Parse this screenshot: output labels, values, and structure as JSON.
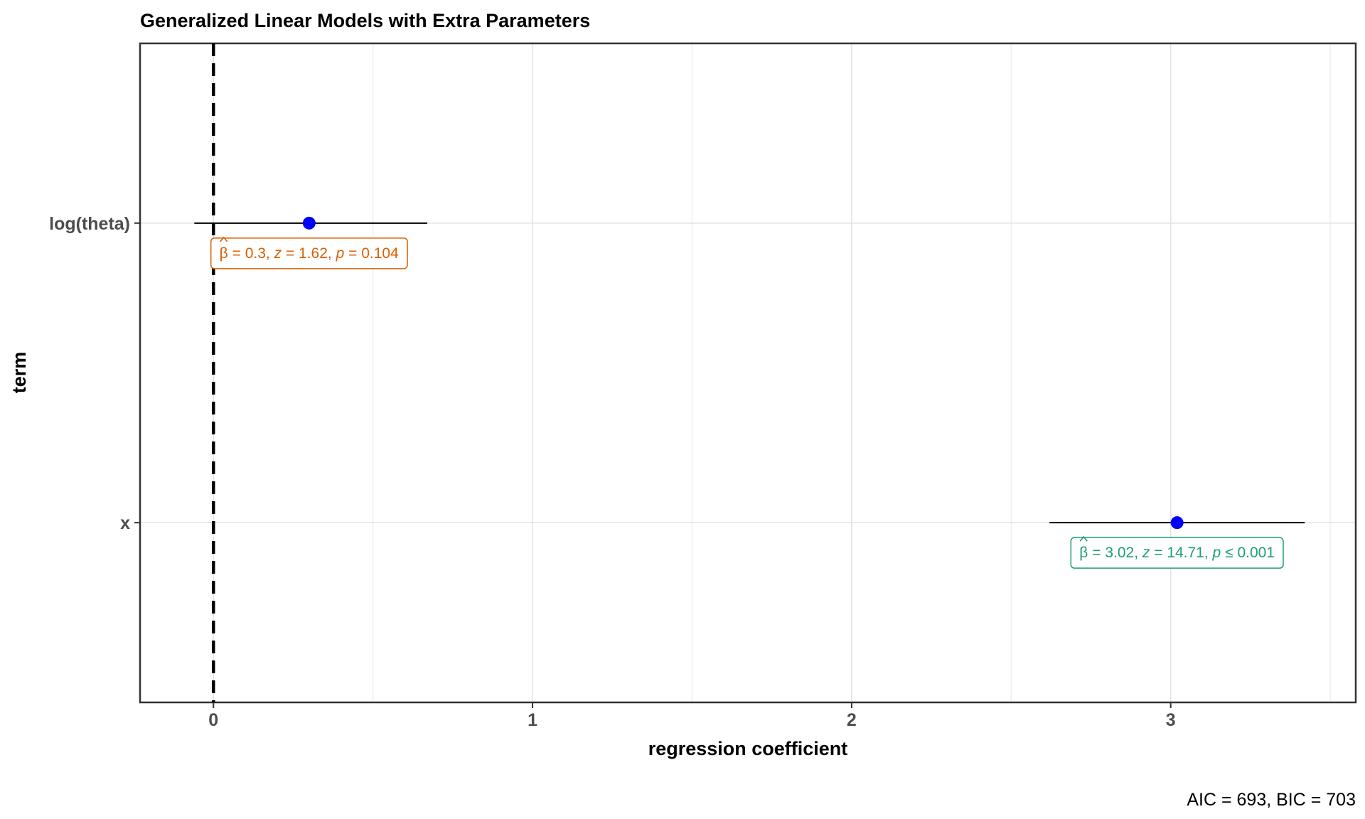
{
  "chart_data": {
    "type": "scatter",
    "title": "Generalized Linear Models with Extra Parameters",
    "xlabel": "regression coefficient",
    "ylabel": "term",
    "caption": "AIC = 693, BIC = 703",
    "xlim": [
      -0.23,
      3.58
    ],
    "x_ticks": [
      "0",
      "1",
      "2",
      "3"
    ],
    "x_tick_values": [
      0,
      1,
      2,
      3
    ],
    "reference_line": 0,
    "grid": true,
    "terms": [
      {
        "term": "log(theta)",
        "estimate": 0.3,
        "conf_low": -0.06,
        "conf_high": 0.67,
        "label": {
          "beta": "0.3",
          "z": "1.62",
          "p_op": "=",
          "p": "0.104"
        },
        "label_color": "#D95F02"
      },
      {
        "term": "x",
        "estimate": 3.02,
        "conf_low": 2.62,
        "conf_high": 3.42,
        "label": {
          "beta": "3.02",
          "z": "14.71",
          "p_op": "≤",
          "p": "0.001"
        },
        "label_color": "#1B9E77"
      }
    ],
    "point_color": "#0000FF"
  }
}
